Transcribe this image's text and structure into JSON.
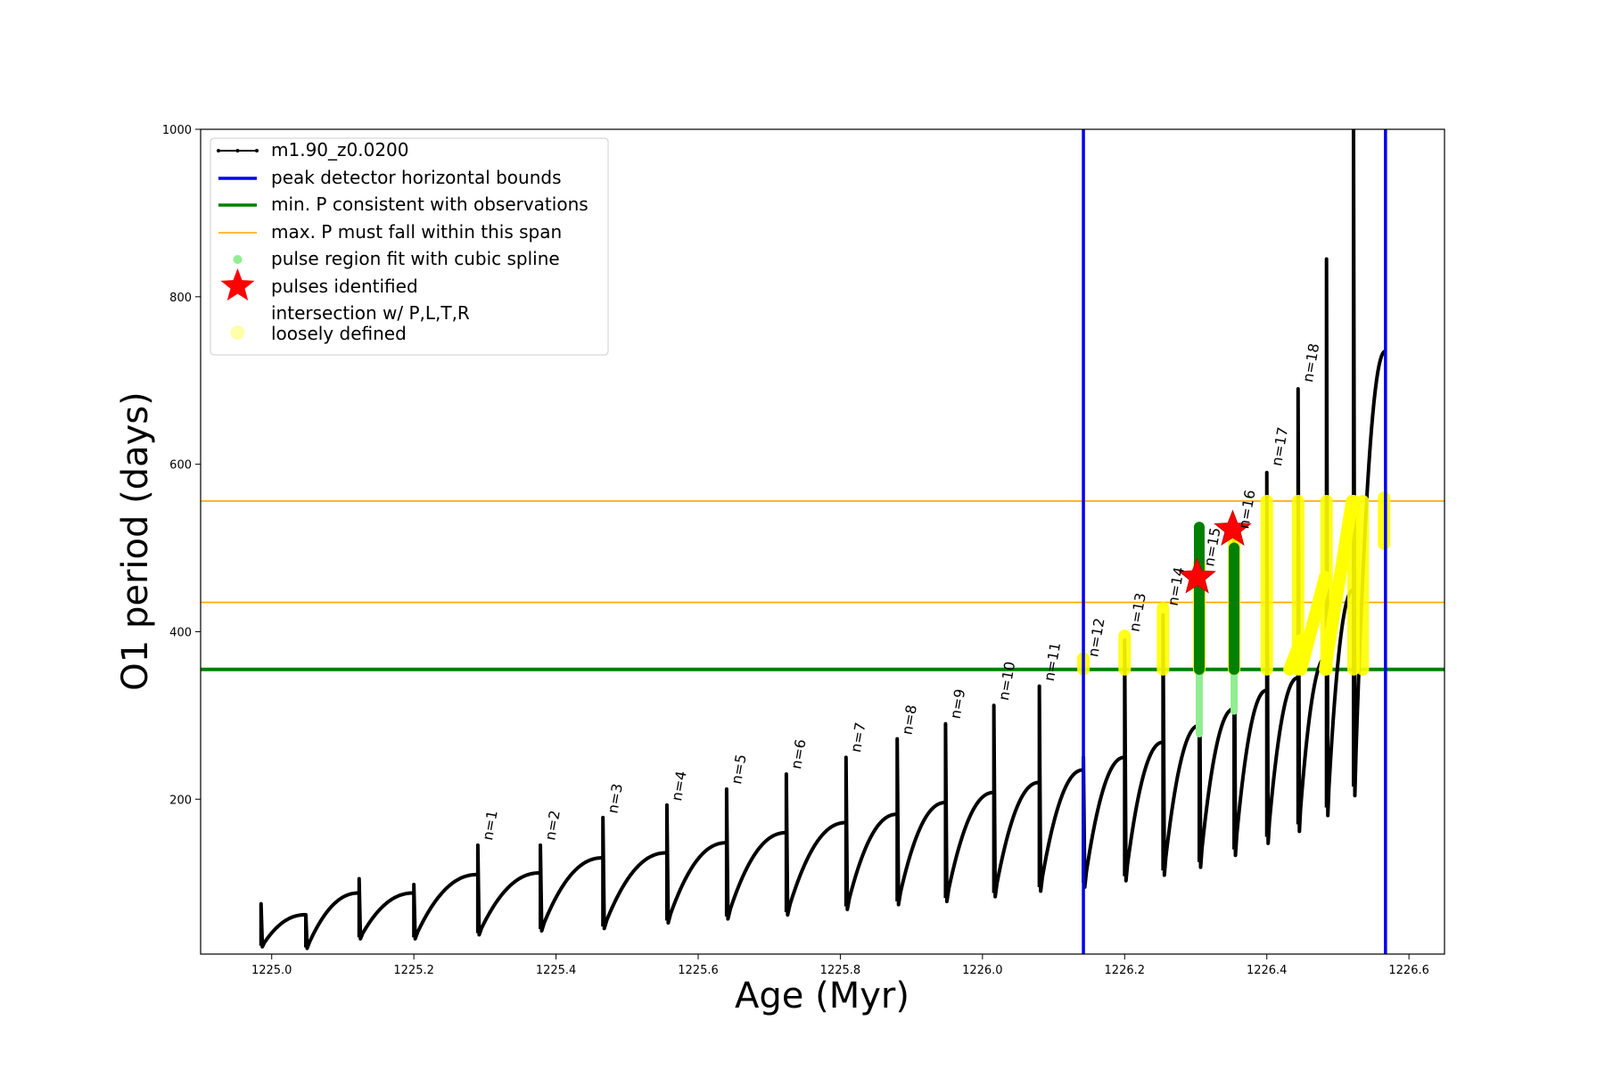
{
  "chart_data": {
    "type": "line",
    "xlabel": "Age (Myr)",
    "ylabel": "O1 period (days)",
    "xlim": [
      1224.9,
      1226.65
    ],
    "ylim": [
      15,
      1000
    ],
    "xticks": [
      "1225.0",
      "1225.2",
      "1225.4",
      "1225.6",
      "1225.8",
      "1226.0",
      "1226.2",
      "1226.4",
      "1226.6"
    ],
    "yticks": [
      "200",
      "400",
      "600",
      "800",
      "1000"
    ],
    "grid": false,
    "legend_position": "top-left",
    "legend": [
      "m1.90_z0.0200",
      "peak detector horizontal bounds",
      "min. P consistent with observations",
      "max. P must fall within this span",
      "pulse region fit with cubic spline",
      "pulses identified",
      "intersection w/ P,L,T,R",
      "loosely defined"
    ],
    "series_name": "m1.90_z0.0200",
    "series_color": "#000000",
    "vertical_bounds": [
      1226.142,
      1226.567
    ],
    "vertical_bounds_color": "#0000ee",
    "min_period": 355,
    "min_period_color": "#008000",
    "max_period_span": [
      435,
      556
    ],
    "max_period_color": "#ffa500",
    "spline_color": "#90ee90",
    "pulse_marker_color": "#ff0000",
    "intersection_color": "#ffff00",
    "loose_color": "#ffffaa",
    "cycles": [
      {
        "x0": 1224.985,
        "x1": 1225.048,
        "start": 25,
        "spike": 75,
        "end": 62
      },
      {
        "x0": 1225.048,
        "x1": 1225.123,
        "start": 23,
        "spike": 62,
        "end": 88
      },
      {
        "x0": 1225.123,
        "x1": 1225.2,
        "start": 35,
        "spike": 105,
        "end": 88
      },
      {
        "x0": 1225.2,
        "x1": 1225.29,
        "start": 35,
        "spike": 98,
        "end": 110
      },
      {
        "x0": 1225.29,
        "x1": 1225.378,
        "start": 40,
        "spike": 145,
        "end": 112
      },
      {
        "x0": 1225.378,
        "x1": 1225.466,
        "start": 45,
        "spike": 145,
        "end": 130
      },
      {
        "x0": 1225.466,
        "x1": 1225.556,
        "start": 48,
        "spike": 178,
        "end": 136
      },
      {
        "x0": 1225.556,
        "x1": 1225.64,
        "start": 55,
        "spike": 193,
        "end": 148
      },
      {
        "x0": 1225.64,
        "x1": 1225.724,
        "start": 60,
        "spike": 212,
        "end": 160
      },
      {
        "x0": 1225.724,
        "x1": 1225.808,
        "start": 65,
        "spike": 230,
        "end": 172
      },
      {
        "x0": 1225.808,
        "x1": 1225.88,
        "start": 72,
        "spike": 250,
        "end": 182
      },
      {
        "x0": 1225.88,
        "x1": 1225.948,
        "start": 78,
        "spike": 272,
        "end": 196
      },
      {
        "x0": 1225.948,
        "x1": 1226.016,
        "start": 82,
        "spike": 290,
        "end": 208
      },
      {
        "x0": 1226.016,
        "x1": 1226.08,
        "start": 88,
        "spike": 312,
        "end": 220
      },
      {
        "x0": 1226.08,
        "x1": 1226.142,
        "start": 95,
        "spike": 335,
        "end": 235
      },
      {
        "x0": 1226.142,
        "x1": 1226.2,
        "start": 100,
        "spike": 250,
        "end": 250
      },
      {
        "x0": 1226.2,
        "x1": 1226.254,
        "start": 108,
        "spike": 390,
        "end": 268
      },
      {
        "x0": 1226.254,
        "x1": 1226.305,
        "start": 115,
        "spike": 420,
        "end": 288
      },
      {
        "x0": 1226.305,
        "x1": 1226.354,
        "start": 125,
        "spike": 470,
        "end": 308
      },
      {
        "x0": 1226.354,
        "x1": 1226.4,
        "start": 140,
        "spike": 520,
        "end": 330
      },
      {
        "x0": 1226.4,
        "x1": 1226.444,
        "start": 155,
        "spike": 590,
        "end": 345
      },
      {
        "x0": 1226.444,
        "x1": 1226.484,
        "start": 170,
        "spike": 690,
        "end": 370
      },
      {
        "x0": 1226.484,
        "x1": 1226.522,
        "start": 190,
        "spike": 845,
        "end": 450
      },
      {
        "x0": 1226.522,
        "x1": 1226.567,
        "start": 215,
        "spike": 1000,
        "end": 735
      }
    ],
    "peak_labels": [
      {
        "label": "n=1",
        "x": 1225.29,
        "y": 148
      },
      {
        "label": "n=2",
        "x": 1225.378,
        "y": 148
      },
      {
        "label": "n=3",
        "x": 1225.466,
        "y": 180
      },
      {
        "label": "n=4",
        "x": 1225.556,
        "y": 195
      },
      {
        "label": "n=5",
        "x": 1225.64,
        "y": 215
      },
      {
        "label": "n=6",
        "x": 1225.724,
        "y": 233
      },
      {
        "label": "n=7",
        "x": 1225.808,
        "y": 253
      },
      {
        "label": "n=8",
        "x": 1225.88,
        "y": 274
      },
      {
        "label": "n=9",
        "x": 1225.948,
        "y": 293
      },
      {
        "label": "n=10",
        "x": 1226.016,
        "y": 315
      },
      {
        "label": "n=11",
        "x": 1226.08,
        "y": 338
      },
      {
        "label": "n=12",
        "x": 1226.142,
        "y": 367
      },
      {
        "label": "n=13",
        "x": 1226.2,
        "y": 397
      },
      {
        "label": "n=14",
        "x": 1226.254,
        "y": 428
      },
      {
        "label": "n=15",
        "x": 1226.305,
        "y": 475
      },
      {
        "label": "n=16",
        "x": 1226.354,
        "y": 520
      },
      {
        "label": "n=17",
        "x": 1226.4,
        "y": 595
      },
      {
        "label": "n=18",
        "x": 1226.444,
        "y": 695
      }
    ],
    "pulses_identified": [
      {
        "x": 1226.302,
        "y": 465
      },
      {
        "x": 1226.352,
        "y": 522
      }
    ],
    "green_spline_regions": [
      {
        "x": 1226.305,
        "y0": 278,
        "y1": 525
      },
      {
        "x": 1226.354,
        "y0": 305,
        "y1": 500
      }
    ],
    "yellow_regions": [
      {
        "x": 1226.142,
        "y0": 355,
        "y1": 368
      },
      {
        "x": 1226.2,
        "y0": 355,
        "y1": 395
      },
      {
        "x": 1226.254,
        "y0": 355,
        "y1": 428
      },
      {
        "x": 1226.305,
        "y0": 355,
        "y1": 480
      },
      {
        "x": 1226.354,
        "y0": 355,
        "y1": 520
      },
      {
        "x": 1226.4,
        "y0": 355,
        "y1": 556
      },
      {
        "x": 1226.444,
        "y0": 355,
        "y1": 556
      },
      {
        "x": 1226.484,
        "y0": 355,
        "y1": 556
      },
      {
        "x": 1226.522,
        "y0": 355,
        "y1": 556
      },
      {
        "x": 1226.535,
        "y0": 355,
        "y1": 556
      },
      {
        "x": 1226.565,
        "y0": 505,
        "y1": 560
      }
    ],
    "yellow_diagonals": [
      {
        "x0": 1226.432,
        "y0": 355,
        "x1": 1226.448,
        "y1": 390
      },
      {
        "x0": 1226.448,
        "y0": 355,
        "x1": 1226.482,
        "y1": 465
      },
      {
        "x0": 1226.482,
        "y0": 355,
        "x1": 1226.52,
        "y1": 556
      }
    ]
  }
}
